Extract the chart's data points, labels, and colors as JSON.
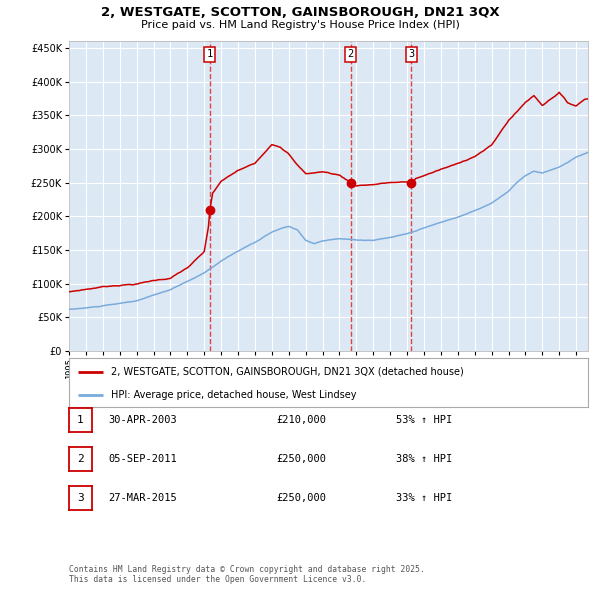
{
  "title": "2, WESTGATE, SCOTTON, GAINSBOROUGH, DN21 3QX",
  "subtitle": "Price paid vs. HM Land Registry's House Price Index (HPI)",
  "bg_color": "#dce9f5",
  "grid_color": "#ffffff",
  "red_line_color": "#cc0000",
  "blue_line_color": "#7aabdc",
  "dashed_line_color": "#dd4444",
  "sale_points": [
    {
      "date_x": 2003.33,
      "price": 210000,
      "label": "1"
    },
    {
      "date_x": 2011.67,
      "price": 250000,
      "label": "2"
    },
    {
      "date_x": 2015.25,
      "price": 250000,
      "label": "3"
    }
  ],
  "legend_entries": [
    {
      "label": "2, WESTGATE, SCOTTON, GAINSBOROUGH, DN21 3QX (detached house)",
      "color": "#cc0000"
    },
    {
      "label": "HPI: Average price, detached house, West Lindsey",
      "color": "#7aabdc"
    }
  ],
  "table_rows": [
    {
      "num": "1",
      "date": "30-APR-2003",
      "price": "£210,000",
      "hpi": "53% ↑ HPI"
    },
    {
      "num": "2",
      "date": "05-SEP-2011",
      "price": "£250,000",
      "hpi": "38% ↑ HPI"
    },
    {
      "num": "3",
      "date": "27-MAR-2015",
      "price": "£250,000",
      "hpi": "33% ↑ HPI"
    }
  ],
  "footnote": "Contains HM Land Registry data © Crown copyright and database right 2025.\nThis data is licensed under the Open Government Licence v3.0.",
  "ylim": [
    0,
    460000
  ],
  "xlim_start": 1995.0,
  "xlim_end": 2025.7
}
